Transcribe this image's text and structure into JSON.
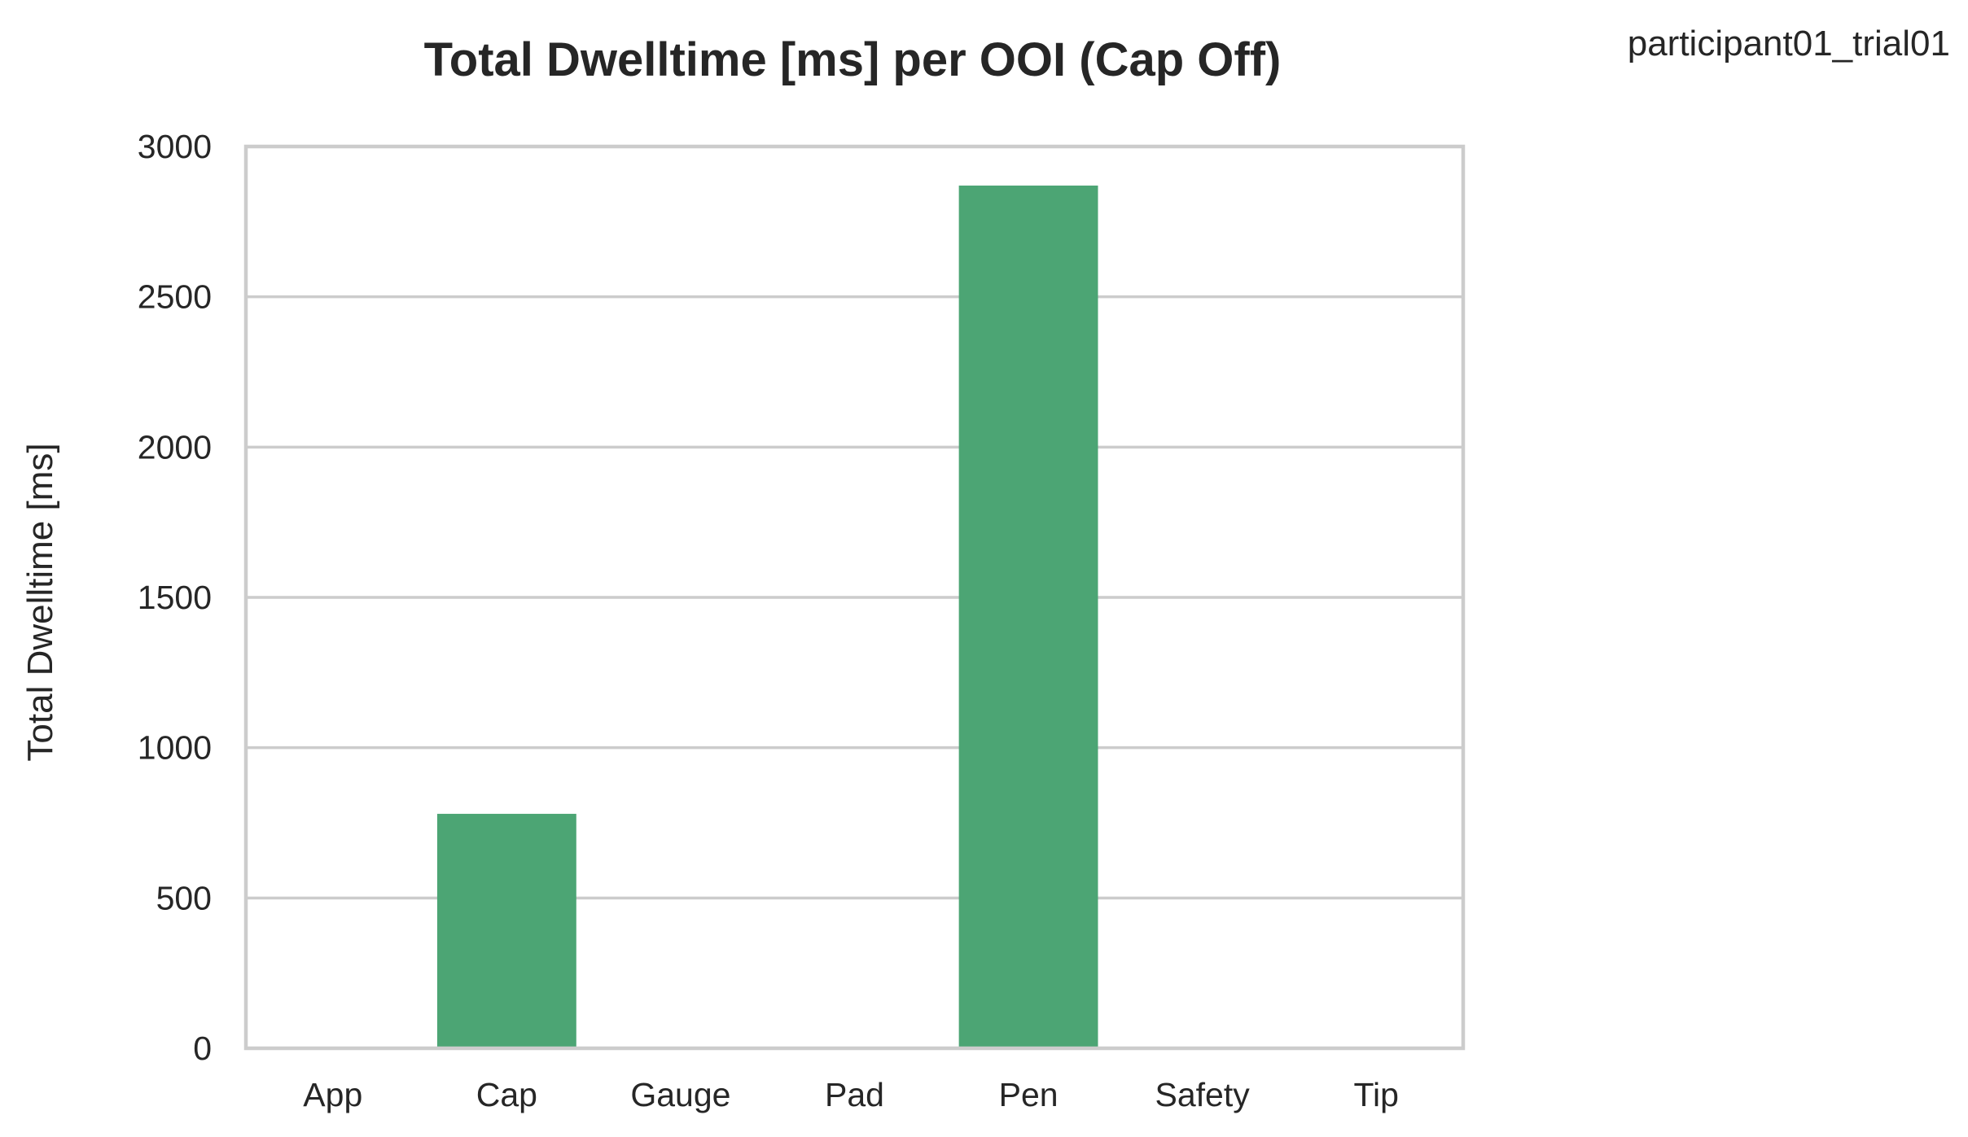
{
  "chart_data": {
    "type": "bar",
    "title": "Total Dwelltime [ms] per OOI (Cap Off)",
    "annotation": "participant01_trial01",
    "xlabel": "",
    "ylabel": "Total Dwelltime [ms]",
    "categories": [
      "App",
      "Cap",
      "Gauge",
      "Pad",
      "Pen",
      "Safety",
      "Tip"
    ],
    "values": [
      0,
      780,
      0,
      0,
      2870,
      0,
      0
    ],
    "ylim": [
      0,
      3000
    ],
    "yticks": [
      0,
      500,
      1000,
      1500,
      2000,
      2500,
      3000
    ],
    "ytick_labels": [
      "0",
      "500",
      "1000",
      "1500",
      "2000",
      "2500",
      "3000"
    ],
    "grid": "horizontal",
    "bar_color": "#4ca574",
    "legend": "none"
  }
}
